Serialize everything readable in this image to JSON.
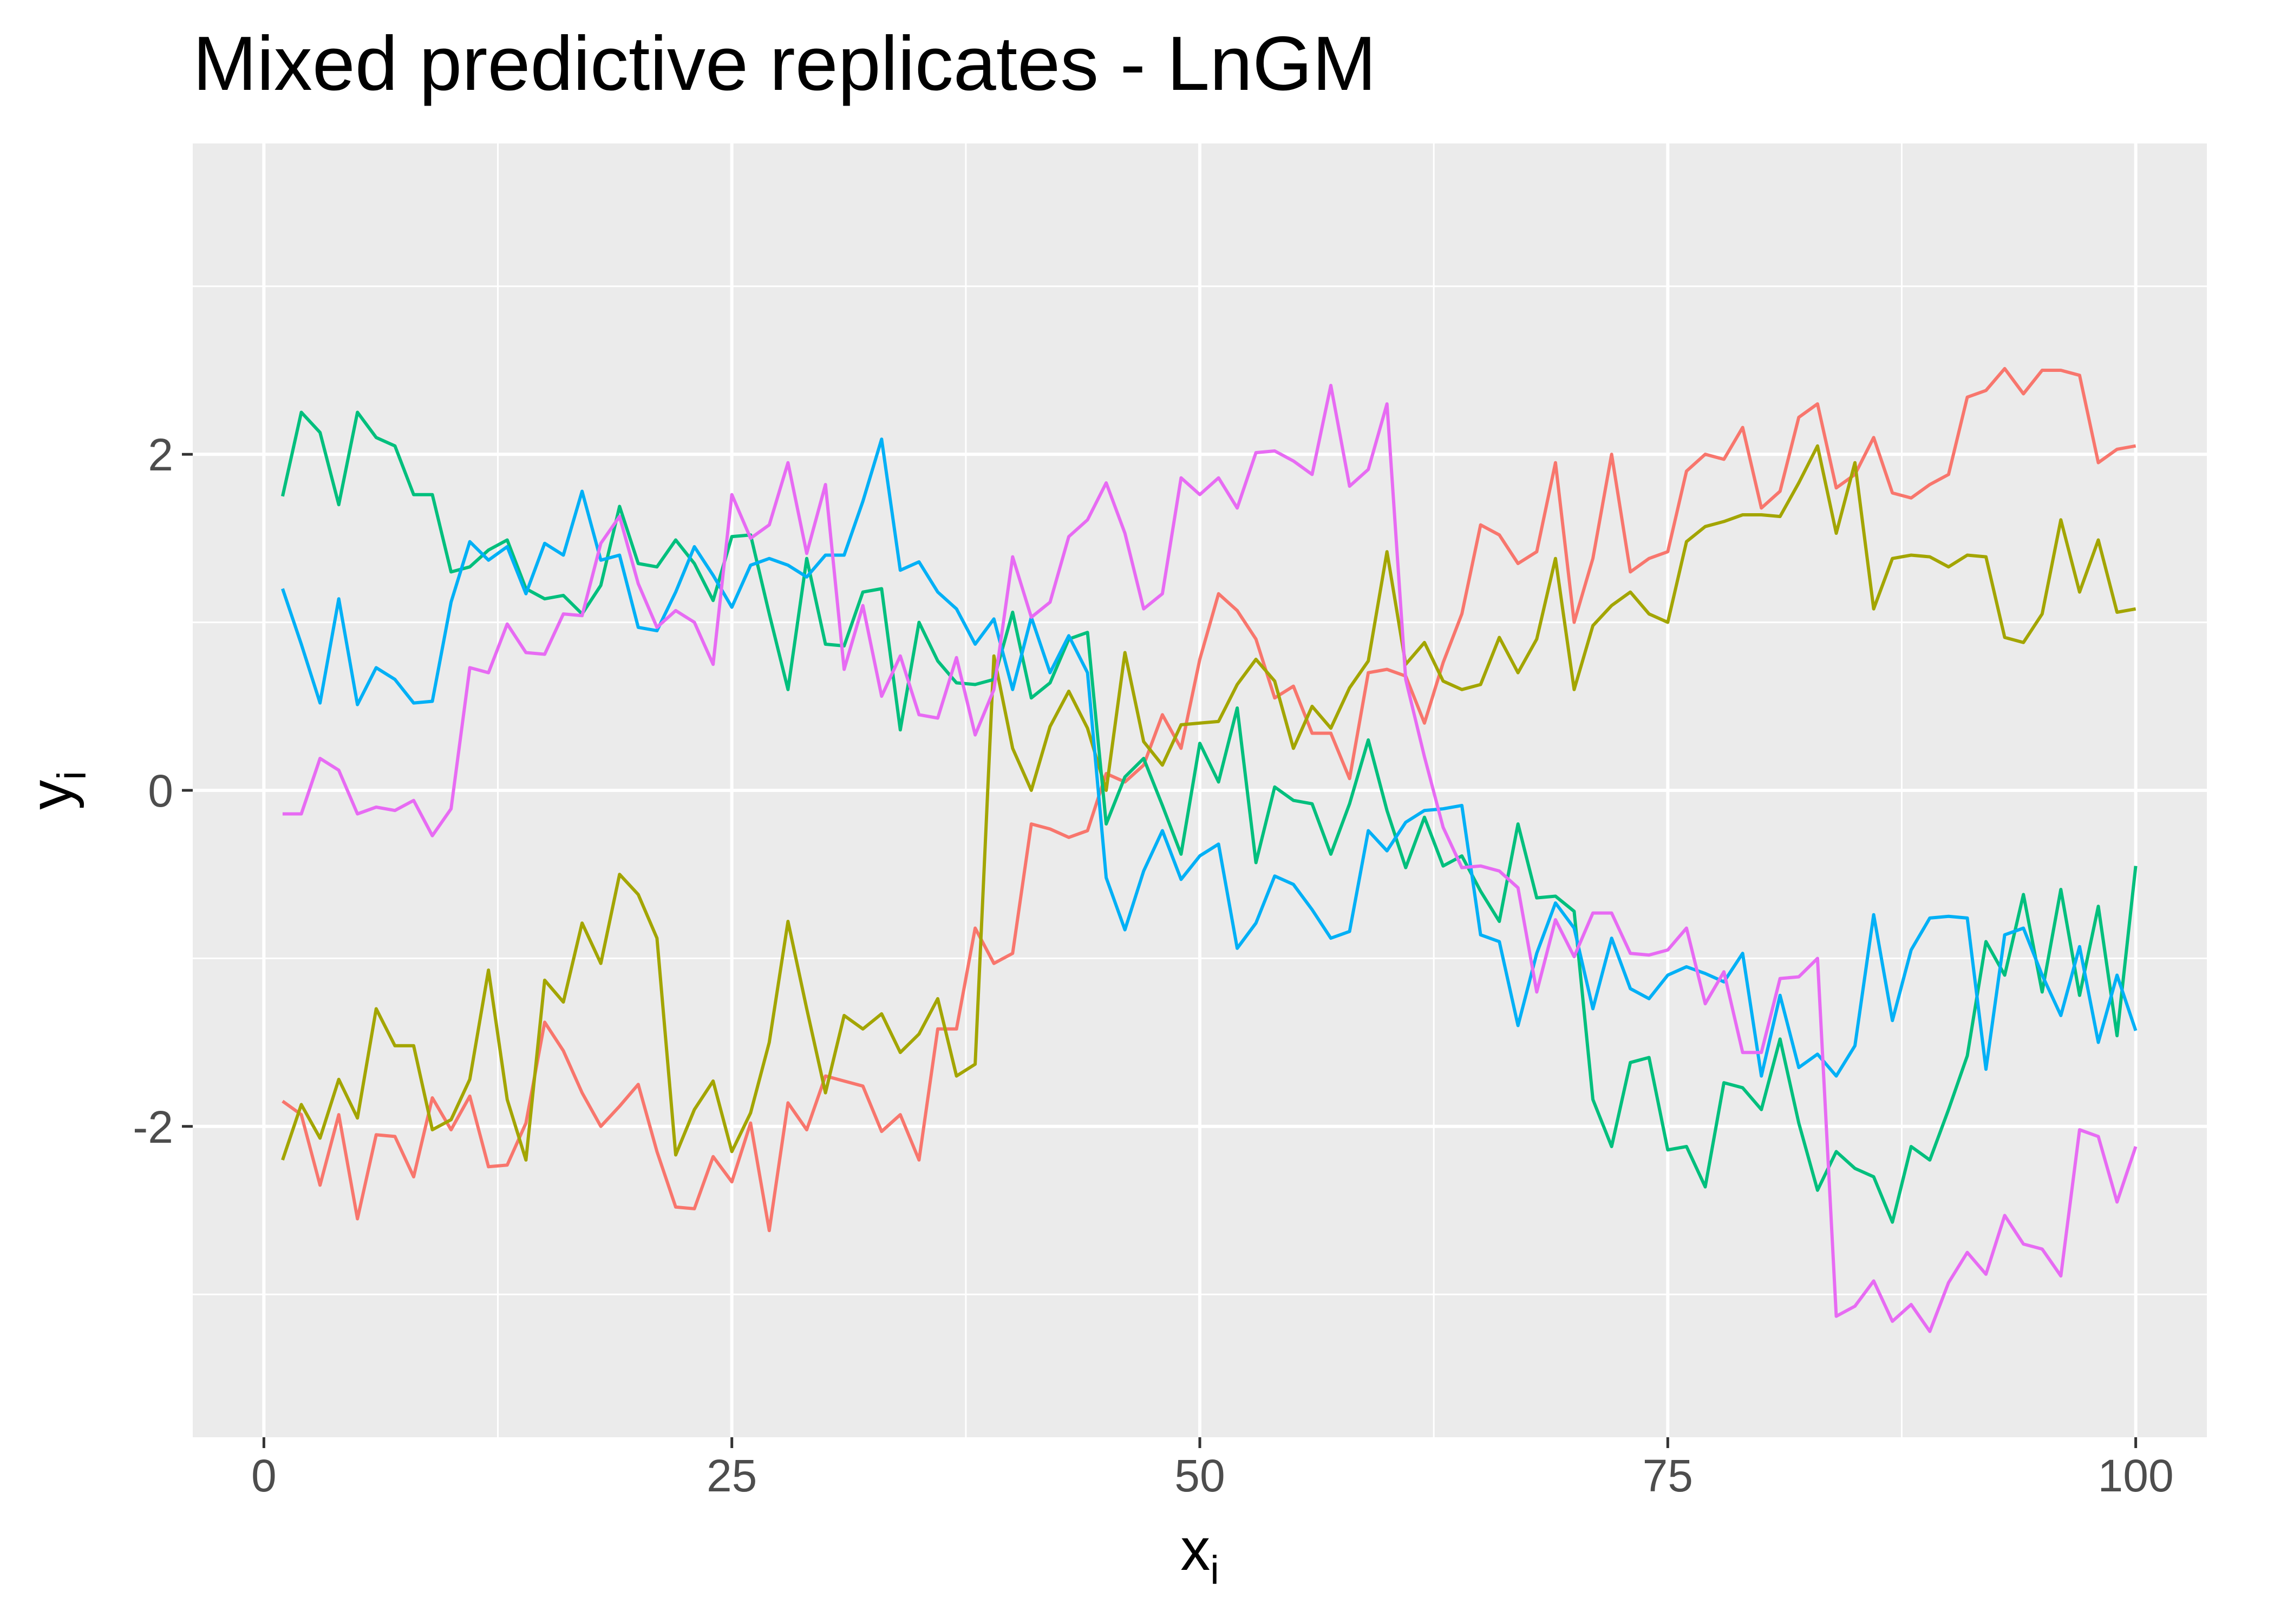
{
  "chart_data": {
    "type": "line",
    "title": "Mixed predictive replicates - LnGM",
    "xlabel": "x",
    "xlabel_sub": "i",
    "ylabel": "y",
    "ylabel_sub": "i",
    "xlim": [
      -3.8,
      103.8
    ],
    "ylim": [
      -3.85,
      3.85
    ],
    "x_ticks": [
      0,
      25,
      50,
      75,
      100
    ],
    "x_tick_labels": [
      "0",
      "25",
      "50",
      "75",
      "100"
    ],
    "y_ticks": [
      -2,
      0,
      2
    ],
    "y_tick_labels": [
      "-2",
      "0",
      "2"
    ],
    "grid": true,
    "legend": "none",
    "colors": {
      "panel": "#EBEBEB",
      "grid": "#FFFFFF",
      "tick": "#333333",
      "tick_label": "#4D4D4D"
    },
    "x": [
      1,
      2,
      3,
      4,
      5,
      6,
      7,
      8,
      9,
      10,
      11,
      12,
      13,
      14,
      15,
      16,
      17,
      18,
      19,
      20,
      21,
      22,
      23,
      24,
      25,
      26,
      27,
      28,
      29,
      30,
      31,
      32,
      33,
      34,
      35,
      36,
      37,
      38,
      39,
      40,
      41,
      42,
      43,
      44,
      45,
      46,
      47,
      48,
      49,
      50,
      51,
      52,
      53,
      54,
      55,
      56,
      57,
      58,
      59,
      60,
      61,
      62,
      63,
      64,
      65,
      66,
      67,
      68,
      69,
      70,
      71,
      72,
      73,
      74,
      75,
      76,
      77,
      78,
      79,
      80,
      81,
      82,
      83,
      84,
      85,
      86,
      87,
      88,
      89,
      90,
      91,
      92,
      93,
      94,
      95,
      96,
      97,
      98,
      99,
      100
    ],
    "series": [
      {
        "color": "#F8766D",
        "values": [
          -1.85,
          -1.93,
          -2.35,
          -1.93,
          -2.55,
          -2.05,
          -2.06,
          -2.3,
          -1.83,
          -2.02,
          -1.82,
          -2.24,
          -2.23,
          -1.98,
          -1.38,
          -1.55,
          -1.8,
          -2.0,
          -1.88,
          -1.75,
          -2.15,
          -2.48,
          -2.49,
          -2.18,
          -2.33,
          -1.98,
          -2.62,
          -1.86,
          -2.02,
          -1.7,
          -1.73,
          -1.76,
          -2.03,
          -1.93,
          -2.2,
          -1.42,
          -1.42,
          -0.82,
          -1.03,
          -0.97,
          -0.2,
          -0.23,
          -0.28,
          -0.24,
          0.1,
          0.05,
          0.15,
          0.45,
          0.25,
          0.78,
          1.17,
          1.07,
          0.9,
          0.55,
          0.62,
          0.34,
          0.34,
          0.07,
          0.7,
          0.72,
          0.68,
          0.4,
          0.76,
          1.05,
          1.58,
          1.52,
          1.35,
          1.42,
          1.95,
          1.0,
          1.38,
          2.0,
          1.3,
          1.38,
          1.42,
          1.9,
          2.0,
          1.97,
          2.16,
          1.68,
          1.78,
          2.22,
          2.3,
          1.8,
          1.88,
          2.1,
          1.77,
          1.74,
          1.82,
          1.88,
          2.34,
          2.38,
          2.51,
          2.36,
          2.5,
          2.5,
          2.47,
          1.95,
          2.03,
          2.05
        ]
      },
      {
        "color": "#A3A500",
        "values": [
          -2.2,
          -1.87,
          -2.07,
          -1.72,
          -1.95,
          -1.3,
          -1.52,
          -1.52,
          -2.02,
          -1.96,
          -1.72,
          -1.07,
          -1.84,
          -2.2,
          -1.13,
          -1.26,
          -0.79,
          -1.03,
          -0.5,
          -0.62,
          -0.88,
          -2.17,
          -1.9,
          -1.73,
          -2.15,
          -1.92,
          -1.5,
          -0.78,
          -1.3,
          -1.8,
          -1.34,
          -1.42,
          -1.33,
          -1.56,
          -1.45,
          -1.24,
          -1.7,
          -1.63,
          0.8,
          0.25,
          0.0,
          0.38,
          0.59,
          0.37,
          0.0,
          0.82,
          0.29,
          0.15,
          0.39,
          0.4,
          0.41,
          0.63,
          0.78,
          0.65,
          0.25,
          0.5,
          0.37,
          0.61,
          0.77,
          1.42,
          0.75,
          0.88,
          0.65,
          0.6,
          0.63,
          0.91,
          0.7,
          0.9,
          1.38,
          0.6,
          0.98,
          1.1,
          1.18,
          1.05,
          1.0,
          1.48,
          1.57,
          1.6,
          1.64,
          1.64,
          1.63,
          1.83,
          2.05,
          1.53,
          1.95,
          1.08,
          1.38,
          1.4,
          1.39,
          1.33,
          1.4,
          1.39,
          0.91,
          0.88,
          1.05,
          1.61,
          1.18,
          1.49,
          1.06,
          1.08
        ]
      },
      {
        "color": "#00BF7D",
        "values": [
          1.75,
          2.25,
          2.13,
          1.7,
          2.25,
          2.1,
          2.05,
          1.76,
          1.76,
          1.3,
          1.33,
          1.43,
          1.49,
          1.2,
          1.14,
          1.16,
          1.05,
          1.22,
          1.69,
          1.35,
          1.33,
          1.49,
          1.35,
          1.13,
          1.51,
          1.52,
          1.05,
          0.6,
          1.38,
          0.87,
          0.86,
          1.18,
          1.2,
          0.36,
          1.0,
          0.77,
          0.64,
          0.63,
          0.66,
          1.06,
          0.55,
          0.64,
          0.9,
          0.94,
          -0.2,
          0.08,
          0.19,
          -0.09,
          -0.38,
          0.28,
          0.05,
          0.49,
          -0.43,
          0.02,
          -0.06,
          -0.08,
          -0.38,
          -0.08,
          0.3,
          -0.12,
          -0.46,
          -0.16,
          -0.45,
          -0.39,
          -0.6,
          -0.78,
          -0.2,
          -0.64,
          -0.63,
          -0.72,
          -1.84,
          -2.12,
          -1.62,
          -1.59,
          -2.14,
          -2.12,
          -2.36,
          -1.74,
          -1.77,
          -1.9,
          -1.48,
          -1.98,
          -2.38,
          -2.15,
          -2.25,
          -2.3,
          -2.57,
          -2.12,
          -2.2,
          -1.9,
          -1.58,
          -0.9,
          -1.1,
          -0.62,
          -1.2,
          -0.59,
          -1.22,
          -0.69,
          -1.46,
          -0.45
        ]
      },
      {
        "color": "#00B0F6",
        "values": [
          1.2,
          0.87,
          0.52,
          1.14,
          0.51,
          0.73,
          0.66,
          0.52,
          0.53,
          1.12,
          1.48,
          1.37,
          1.45,
          1.17,
          1.47,
          1.4,
          1.78,
          1.37,
          1.4,
          0.97,
          0.95,
          1.18,
          1.45,
          1.28,
          1.09,
          1.34,
          1.38,
          1.34,
          1.27,
          1.4,
          1.4,
          1.72,
          2.09,
          1.31,
          1.36,
          1.18,
          1.08,
          0.87,
          1.02,
          0.6,
          1.03,
          0.7,
          0.92,
          0.7,
          -0.52,
          -0.83,
          -0.48,
          -0.24,
          -0.53,
          -0.39,
          -0.32,
          -0.94,
          -0.79,
          -0.51,
          -0.56,
          -0.71,
          -0.88,
          -0.84,
          -0.24,
          -0.36,
          -0.19,
          -0.12,
          -0.11,
          -0.09,
          -0.86,
          -0.9,
          -1.4,
          -0.97,
          -0.67,
          -0.82,
          -1.3,
          -0.88,
          -1.18,
          -1.24,
          -1.1,
          -1.05,
          -1.09,
          -1.14,
          -0.97,
          -1.7,
          -1.22,
          -1.65,
          -1.57,
          -1.7,
          -1.52,
          -0.74,
          -1.37,
          -0.95,
          -0.76,
          -0.75,
          -0.76,
          -1.66,
          -0.86,
          -0.82,
          -1.1,
          -1.34,
          -0.93,
          -1.5,
          -1.1,
          -1.43
        ]
      },
      {
        "color": "#E76BF3",
        "values": [
          -0.14,
          -0.14,
          0.19,
          0.12,
          -0.14,
          -0.1,
          -0.12,
          -0.06,
          -0.27,
          -0.11,
          0.73,
          0.7,
          0.99,
          0.82,
          0.81,
          1.05,
          1.04,
          1.47,
          1.63,
          1.23,
          0.97,
          1.07,
          1.0,
          0.75,
          1.76,
          1.5,
          1.58,
          1.95,
          1.41,
          1.82,
          0.72,
          1.1,
          0.56,
          0.8,
          0.45,
          0.43,
          0.79,
          0.33,
          0.6,
          1.39,
          1.03,
          1.12,
          1.51,
          1.61,
          1.83,
          1.53,
          1.08,
          1.17,
          1.86,
          1.76,
          1.86,
          1.68,
          2.01,
          2.02,
          1.96,
          1.88,
          2.41,
          1.81,
          1.91,
          2.3,
          0.66,
          0.2,
          -0.22,
          -0.46,
          -0.45,
          -0.48,
          -0.58,
          -1.2,
          -0.77,
          -0.99,
          -0.73,
          -0.73,
          -0.97,
          -0.98,
          -0.95,
          -0.82,
          -1.27,
          -1.08,
          -1.56,
          -1.56,
          -1.12,
          -1.11,
          -1.0,
          -3.13,
          -3.07,
          -2.92,
          -3.16,
          -3.06,
          -3.22,
          -2.93,
          -2.75,
          -2.88,
          -2.53,
          -2.7,
          -2.73,
          -2.89,
          -2.02,
          -2.06,
          -2.45,
          -2.12
        ]
      }
    ]
  }
}
